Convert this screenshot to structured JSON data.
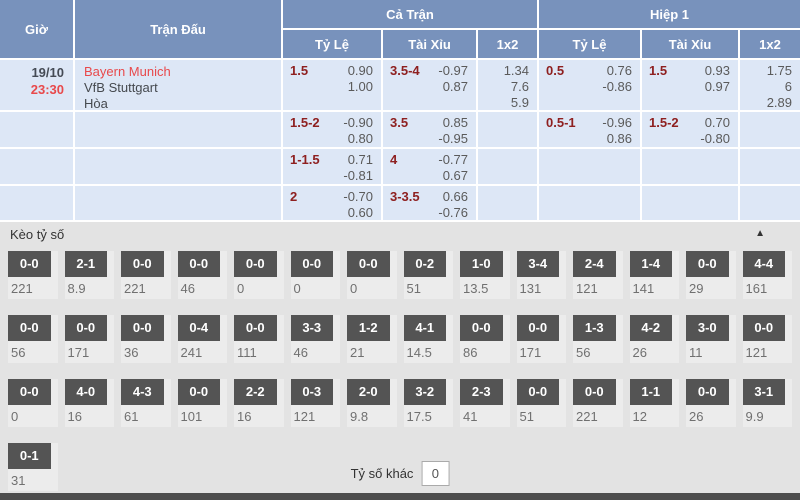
{
  "header": {
    "time": "Giờ",
    "match": "Trận Đấu",
    "full_match": "Cả Trận",
    "first_half": "Hiệp 1",
    "sub": {
      "handicap": "Tỷ Lệ",
      "over_under": "Tài Xỉu",
      "one_x_two": "1x2"
    }
  },
  "match": {
    "date": "19/10",
    "time": "23:30",
    "home": "Bayern Munich",
    "away": "VfB Stuttgart",
    "draw": "Hòa"
  },
  "odds_rows": [
    {
      "ft_hdp_line": "1.5",
      "ft_hdp_top": "0.90",
      "ft_hdp_bot": "1.00",
      "ft_ou_line": "3.5-4",
      "ft_ou_top": "-0.97",
      "ft_ou_bot": "0.87",
      "ft_1x2": [
        "1.34",
        "7.6",
        "5.9"
      ],
      "h1_hdp_line": "0.5",
      "h1_hdp_top": "0.76",
      "h1_hdp_bot": "-0.86",
      "h1_ou_line": "1.5",
      "h1_ou_top": "0.93",
      "h1_ou_bot": "0.97",
      "h1_1x2": [
        "1.75",
        "6",
        "2.89"
      ]
    },
    {
      "ft_hdp_line": "1.5-2",
      "ft_hdp_top": "-0.90",
      "ft_hdp_bot": "0.80",
      "ft_ou_line": "3.5",
      "ft_ou_top": "0.85",
      "ft_ou_bot": "-0.95",
      "h1_hdp_line": "0.5-1",
      "h1_hdp_top": "-0.96",
      "h1_hdp_bot": "0.86",
      "h1_ou_line": "1.5-2",
      "h1_ou_top": "0.70",
      "h1_ou_bot": "-0.80"
    },
    {
      "ft_hdp_line": "1-1.5",
      "ft_hdp_top": "0.71",
      "ft_hdp_bot": "-0.81",
      "ft_ou_line": "4",
      "ft_ou_top": "-0.77",
      "ft_ou_bot": "0.67"
    },
    {
      "ft_hdp_line": "2",
      "ft_hdp_top": "-0.70",
      "ft_hdp_bot": "0.60",
      "ft_ou_line": "3-3.5",
      "ft_ou_top": "0.66",
      "ft_ou_bot": "-0.76"
    }
  ],
  "score_section": {
    "title": "Kèo tỷ số",
    "collapse_icon": "▲",
    "other_score_label": "Tỷ số khác",
    "other_score_value": "0",
    "rows": [
      [
        {
          "score": "0-0",
          "odds": "221"
        },
        {
          "score": "2-1",
          "odds": "8.9"
        },
        {
          "score": "0-0",
          "odds": "221"
        },
        {
          "score": "0-0",
          "odds": "46"
        },
        {
          "score": "0-0",
          "odds": "0"
        },
        {
          "score": "0-0",
          "odds": "0"
        },
        {
          "score": "0-0",
          "odds": "0"
        },
        {
          "score": "0-2",
          "odds": "51"
        },
        {
          "score": "1-0",
          "odds": "13.5"
        },
        {
          "score": "3-4",
          "odds": "131"
        },
        {
          "score": "2-4",
          "odds": "121"
        },
        {
          "score": "1-4",
          "odds": "141"
        },
        {
          "score": "0-0",
          "odds": "29"
        },
        {
          "score": "4-4",
          "odds": "161"
        }
      ],
      [
        {
          "score": "0-0",
          "odds": "56"
        },
        {
          "score": "0-0",
          "odds": "171"
        },
        {
          "score": "0-0",
          "odds": "36"
        },
        {
          "score": "0-4",
          "odds": "241"
        },
        {
          "score": "0-0",
          "odds": "111"
        },
        {
          "score": "3-3",
          "odds": "46"
        },
        {
          "score": "1-2",
          "odds": "21"
        },
        {
          "score": "4-1",
          "odds": "14.5"
        },
        {
          "score": "0-0",
          "odds": "86"
        },
        {
          "score": "0-0",
          "odds": "171"
        },
        {
          "score": "1-3",
          "odds": "56"
        },
        {
          "score": "4-2",
          "odds": "26"
        },
        {
          "score": "3-0",
          "odds": "11"
        },
        {
          "score": "0-0",
          "odds": "121"
        }
      ],
      [
        {
          "score": "0-0",
          "odds": "0"
        },
        {
          "score": "4-0",
          "odds": "16"
        },
        {
          "score": "4-3",
          "odds": "61"
        },
        {
          "score": "0-0",
          "odds": "101"
        },
        {
          "score": "2-2",
          "odds": "16"
        },
        {
          "score": "0-3",
          "odds": "121"
        },
        {
          "score": "2-0",
          "odds": "9.8"
        },
        {
          "score": "3-2",
          "odds": "17.5"
        },
        {
          "score": "2-3",
          "odds": "41"
        },
        {
          "score": "0-0",
          "odds": "51"
        },
        {
          "score": "0-0",
          "odds": "221"
        },
        {
          "score": "1-1",
          "odds": "12"
        },
        {
          "score": "0-0",
          "odds": "26"
        },
        {
          "score": "3-1",
          "odds": "9.9"
        }
      ],
      [
        {
          "score": "0-1",
          "odds": "31"
        }
      ]
    ]
  },
  "colors": {
    "header_blue": "#7892bc",
    "row_blue": "#dde7f6",
    "handicap_maroon": "#8e2020",
    "accent_red": "#e8494b",
    "score_box_gray": "#545454",
    "section_gray": "#e3e3e3"
  }
}
